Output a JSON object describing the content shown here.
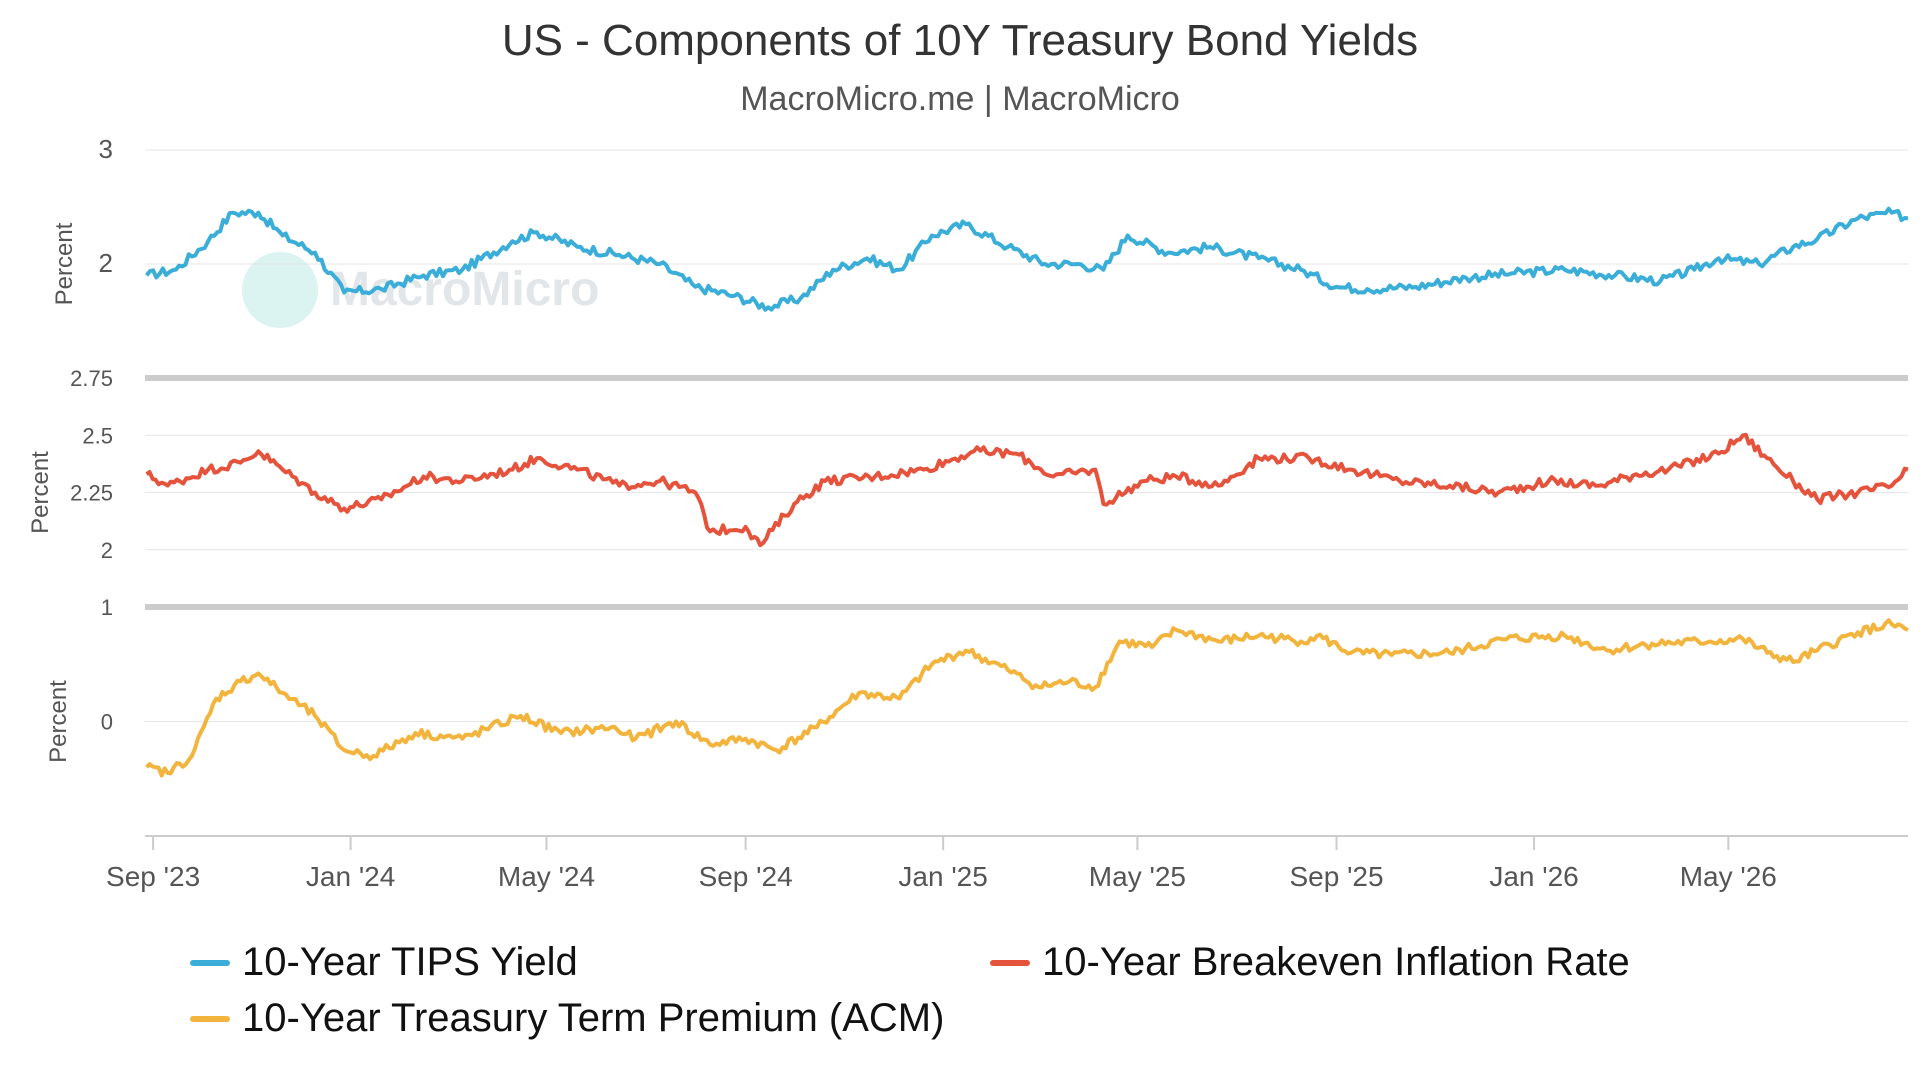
{
  "chart_data": {
    "type": "line",
    "title": "US - Components of 10Y Treasury Bond Yields",
    "subtitle": "MacroMicro.me | MacroMicro",
    "watermark": "MacroMicro",
    "x_labels": [
      "Sep '23",
      "Jan '24",
      "May '24",
      "Sep '24",
      "Jan '25",
      "May '25",
      "Sep '25",
      "Jan '26",
      "May '26"
    ],
    "x_range": [
      "2023-08-27",
      "2026-08-20"
    ],
    "panels": [
      {
        "ylabel": "Percent",
        "ylim": [
          1,
          3
        ],
        "ticks": [
          "3",
          "2"
        ],
        "series": {
          "name": "10-Year TIPS Yield",
          "color": "#3aaed8",
          "points": [
            [
              "2023-08-28",
              1.9
            ],
            [
              "2023-09-15",
              1.95
            ],
            [
              "2023-10-05",
              2.2
            ],
            [
              "2023-10-20",
              2.45
            ],
            [
              "2023-11-05",
              2.45
            ],
            [
              "2023-11-20",
              2.25
            ],
            [
              "2023-12-10",
              2.1
            ],
            [
              "2023-12-28",
              1.75
            ],
            [
              "2024-01-20",
              1.78
            ],
            [
              "2024-02-15",
              1.9
            ],
            [
              "2024-03-10",
              1.95
            ],
            [
              "2024-04-10",
              2.2
            ],
            [
              "2024-04-25",
              2.28
            ],
            [
              "2024-05-20",
              2.15
            ],
            [
              "2024-06-15",
              2.08
            ],
            [
              "2024-07-10",
              2.0
            ],
            [
              "2024-08-01",
              1.8
            ],
            [
              "2024-08-25",
              1.72
            ],
            [
              "2024-09-15",
              1.62
            ],
            [
              "2024-10-05",
              1.7
            ],
            [
              "2024-10-25",
              1.95
            ],
            [
              "2024-11-15",
              2.05
            ],
            [
              "2024-12-05",
              1.95
            ],
            [
              "2024-12-25",
              2.25
            ],
            [
              "2025-01-15",
              2.35
            ],
            [
              "2025-02-10",
              2.15
            ],
            [
              "2025-03-05",
              2.0
            ],
            [
              "2025-03-25",
              2.0
            ],
            [
              "2025-04-10",
              1.95
            ],
            [
              "2025-04-25",
              2.25
            ],
            [
              "2025-05-20",
              2.1
            ],
            [
              "2025-06-15",
              2.15
            ],
            [
              "2025-07-15",
              2.05
            ],
            [
              "2025-08-10",
              1.95
            ],
            [
              "2025-09-01",
              1.8
            ],
            [
              "2025-09-20",
              1.78
            ],
            [
              "2025-10-20",
              1.8
            ],
            [
              "2025-11-20",
              1.88
            ],
            [
              "2025-12-20",
              1.92
            ],
            [
              "2026-01-20",
              1.95
            ],
            [
              "2026-02-20",
              1.9
            ],
            [
              "2026-03-20",
              1.85
            ],
            [
              "2026-04-10",
              1.95
            ],
            [
              "2026-04-25",
              2.05
            ],
            [
              "2026-05-20",
              2.0
            ],
            [
              "2026-06-10",
              2.15
            ],
            [
              "2026-06-25",
              2.22
            ],
            [
              "2026-07-20",
              2.4
            ],
            [
              "2026-08-10",
              2.45
            ],
            [
              "2026-08-20",
              2.4
            ]
          ]
        }
      },
      {
        "ylabel": "Percent",
        "ylim": [
          1.75,
          2.75
        ],
        "ticks": [
          "2.75",
          "2.5",
          "2.25",
          "2"
        ],
        "series": {
          "name": "10-Year Breakeven Inflation Rate",
          "color": "#e5533c",
          "points": [
            [
              "2023-08-28",
              2.33
            ],
            [
              "2023-09-10",
              2.28
            ],
            [
              "2023-10-05",
              2.35
            ],
            [
              "2023-10-25",
              2.38
            ],
            [
              "2023-11-05",
              2.43
            ],
            [
              "2023-11-20",
              2.35
            ],
            [
              "2023-12-10",
              2.25
            ],
            [
              "2023-12-28",
              2.18
            ],
            [
              "2024-01-20",
              2.22
            ],
            [
              "2024-02-15",
              2.32
            ],
            [
              "2024-03-10",
              2.3
            ],
            [
              "2024-04-10",
              2.35
            ],
            [
              "2024-04-25",
              2.4
            ],
            [
              "2024-05-20",
              2.35
            ],
            [
              "2024-06-15",
              2.28
            ],
            [
              "2024-07-10",
              2.3
            ],
            [
              "2024-08-01",
              2.25
            ],
            [
              "2024-08-10",
              2.08
            ],
            [
              "2024-09-01",
              2.1
            ],
            [
              "2024-09-10",
              2.02
            ],
            [
              "2024-10-01",
              2.2
            ],
            [
              "2024-10-20",
              2.3
            ],
            [
              "2024-11-20",
              2.32
            ],
            [
              "2024-12-20",
              2.35
            ],
            [
              "2025-01-20",
              2.43
            ],
            [
              "2025-02-15",
              2.42
            ],
            [
              "2025-03-10",
              2.32
            ],
            [
              "2025-04-05",
              2.35
            ],
            [
              "2025-04-10",
              2.2
            ],
            [
              "2025-05-05",
              2.3
            ],
            [
              "2025-05-25",
              2.32
            ],
            [
              "2025-06-20",
              2.28
            ],
            [
              "2025-07-15",
              2.4
            ],
            [
              "2025-08-15",
              2.4
            ],
            [
              "2025-09-10",
              2.35
            ],
            [
              "2025-10-10",
              2.3
            ],
            [
              "2025-11-10",
              2.28
            ],
            [
              "2025-12-10",
              2.25
            ],
            [
              "2026-01-10",
              2.3
            ],
            [
              "2026-02-10",
              2.28
            ],
            [
              "2026-03-05",
              2.33
            ],
            [
              "2026-03-25",
              2.35
            ],
            [
              "2026-04-25",
              2.42
            ],
            [
              "2026-05-10",
              2.5
            ],
            [
              "2026-05-25",
              2.4
            ],
            [
              "2026-06-10",
              2.3
            ],
            [
              "2026-06-25",
              2.22
            ],
            [
              "2026-07-20",
              2.25
            ],
            [
              "2026-08-10",
              2.28
            ],
            [
              "2026-08-20",
              2.35
            ]
          ]
        }
      },
      {
        "ylabel": "Percent",
        "ylim": [
          -1,
          1
        ],
        "ticks": [
          "1",
          "0"
        ],
        "series": {
          "name": "10-Year Treasury Term Premium (ACM)",
          "color": "#f2b43c",
          "points": [
            [
              "2023-08-28",
              -0.4
            ],
            [
              "2023-09-10",
              -0.45
            ],
            [
              "2023-09-25",
              -0.3
            ],
            [
              "2023-10-10",
              0.2
            ],
            [
              "2023-10-25",
              0.35
            ],
            [
              "2023-11-05",
              0.42
            ],
            [
              "2023-11-20",
              0.25
            ],
            [
              "2023-12-10",
              0.05
            ],
            [
              "2023-12-28",
              -0.25
            ],
            [
              "2024-01-15",
              -0.3
            ],
            [
              "2024-02-10",
              -0.1
            ],
            [
              "2024-03-10",
              -0.15
            ],
            [
              "2024-04-15",
              0.05
            ],
            [
              "2024-05-10",
              -0.1
            ],
            [
              "2024-06-10",
              -0.05
            ],
            [
              "2024-06-25",
              -0.15
            ],
            [
              "2024-07-20",
              0.0
            ],
            [
              "2024-08-10",
              -0.2
            ],
            [
              "2024-09-01",
              -0.15
            ],
            [
              "2024-09-20",
              -0.25
            ],
            [
              "2024-10-15",
              -0.05
            ],
            [
              "2024-11-10",
              0.25
            ],
            [
              "2024-12-05",
              0.2
            ],
            [
              "2024-12-25",
              0.5
            ],
            [
              "2025-01-15",
              0.62
            ],
            [
              "2025-02-10",
              0.45
            ],
            [
              "2025-03-01",
              0.3
            ],
            [
              "2025-03-20",
              0.35
            ],
            [
              "2025-04-05",
              0.3
            ],
            [
              "2025-04-20",
              0.7
            ],
            [
              "2025-05-10",
              0.65
            ],
            [
              "2025-05-25",
              0.8
            ],
            [
              "2025-06-20",
              0.7
            ],
            [
              "2025-07-15",
              0.75
            ],
            [
              "2025-08-10",
              0.7
            ],
            [
              "2025-08-20",
              0.75
            ],
            [
              "2025-09-10",
              0.6
            ],
            [
              "2025-10-05",
              0.58
            ],
            [
              "2025-11-10",
              0.6
            ],
            [
              "2025-12-15",
              0.72
            ],
            [
              "2026-01-20",
              0.75
            ],
            [
              "2026-02-15",
              0.62
            ],
            [
              "2026-03-15",
              0.68
            ],
            [
              "2026-04-20",
              0.7
            ],
            [
              "2026-05-10",
              0.72
            ],
            [
              "2026-05-25",
              0.6
            ],
            [
              "2026-06-10",
              0.52
            ],
            [
              "2026-06-25",
              0.62
            ],
            [
              "2026-07-20",
              0.78
            ],
            [
              "2026-08-10",
              0.85
            ],
            [
              "2026-08-20",
              0.8
            ]
          ]
        }
      }
    ]
  }
}
